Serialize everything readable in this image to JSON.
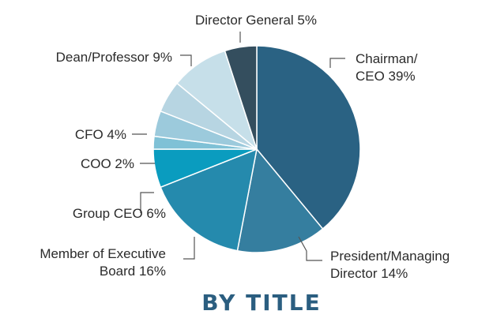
{
  "chart_data": {
    "type": "pie",
    "title": "BY TITLE",
    "slices": [
      {
        "label_lines": [
          "Chairman/",
          "CEO 39%"
        ],
        "value": 39,
        "color": "#2a6283"
      },
      {
        "label_lines": [
          "President/Managing",
          "Director 14%"
        ],
        "value": 14,
        "color": "#357e9f"
      },
      {
        "label_lines": [
          "Member of Executive",
          "Board 16%"
        ],
        "value": 16,
        "color": "#258aad"
      },
      {
        "label_lines": [
          "Group CEO 6%"
        ],
        "value": 6,
        "color": "#0a9cbf"
      },
      {
        "label_lines": [
          "COO 2%"
        ],
        "value": 2,
        "color": "#7fc1d6"
      },
      {
        "label_lines": [
          "CFO 4%"
        ],
        "value": 4,
        "color": "#9ccadc"
      },
      {
        "label_lines": [
          "Dean/Professor 9%"
        ],
        "value": 9,
        "color": "#c6dfe9"
      },
      {
        "label_lines": [
          "Director General 5%"
        ],
        "value": 5,
        "color": "#344e5e"
      }
    ],
    "extra_slice": {
      "value": 5,
      "color": "#b7d5e2"
    }
  }
}
